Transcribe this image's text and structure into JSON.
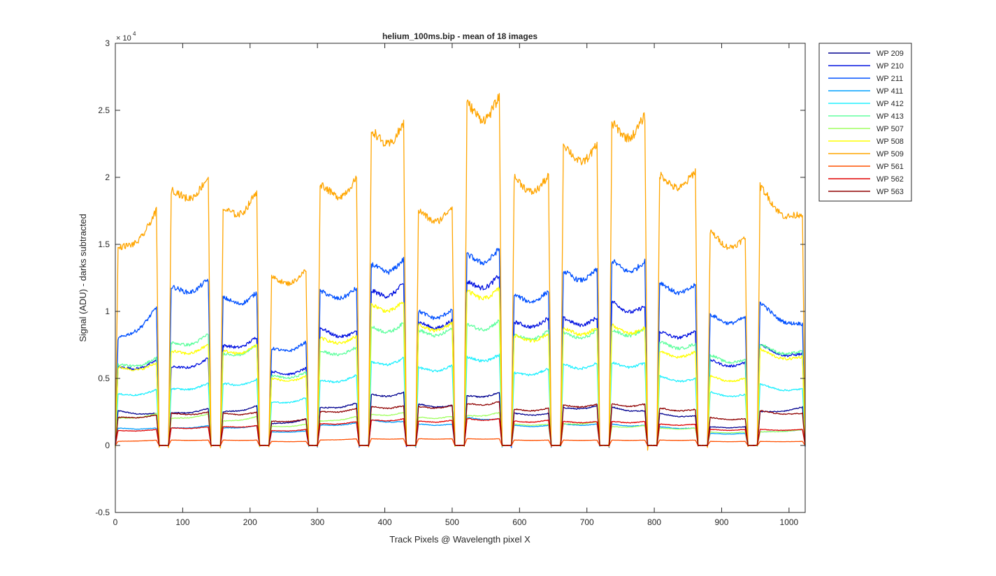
{
  "chart_data": {
    "type": "line",
    "title": "helium_100ms.bip - mean of 18 images",
    "xlabel": "Track Pixels @ Wavelength pixel X",
    "ylabel": "Signal (ADU) - darks subtracted",
    "y_exponent_label": "× 10",
    "y_exponent_power": "4",
    "xlim": [
      0,
      1024
    ],
    "ylim": [
      -0.5,
      3
    ],
    "x_ticks": [
      0,
      100,
      200,
      300,
      400,
      500,
      600,
      700,
      800,
      900,
      1000
    ],
    "x_tick_labels": [
      "0",
      "100",
      "200",
      "300",
      "400",
      "500",
      "600",
      "700",
      "800",
      "900",
      "1000"
    ],
    "y_ticks": [
      -0.5,
      0,
      0.5,
      1,
      1.5,
      2,
      2.5,
      3
    ],
    "y_tick_labels": [
      "-0.5",
      "0",
      "0.5",
      "1",
      "1.5",
      "2",
      "2.5",
      "3"
    ],
    "y_scale_note": "values in units of 10^4 ADU",
    "grid": false,
    "legend_position": "outside-top-right",
    "tracks": [
      {
        "start": 0,
        "end": 65
      },
      {
        "start": 79,
        "end": 142
      },
      {
        "start": 156,
        "end": 214
      },
      {
        "start": 228,
        "end": 287
      },
      {
        "start": 300,
        "end": 362
      },
      {
        "start": 376,
        "end": 432
      },
      {
        "start": 446,
        "end": 504
      },
      {
        "start": 518,
        "end": 574
      },
      {
        "start": 588,
        "end": 647
      },
      {
        "start": 661,
        "end": 719
      },
      {
        "start": 733,
        "end": 790
      },
      {
        "start": 804,
        "end": 865
      },
      {
        "start": 879,
        "end": 939
      },
      {
        "start": 953,
        "end": 1024
      }
    ],
    "series": [
      {
        "name": "WP 209",
        "color": "#00008f",
        "track_levels": [
          [
            0.26,
            0.24
          ],
          [
            0.24,
            0.28
          ],
          [
            0.25,
            0.3
          ],
          [
            0.16,
            0.2
          ],
          [
            0.28,
            0.32
          ],
          [
            0.38,
            0.4
          ],
          [
            0.31,
            0.3
          ],
          [
            0.37,
            0.4
          ],
          [
            0.24,
            0.24
          ],
          [
            0.28,
            0.3
          ],
          [
            0.29,
            0.26
          ],
          [
            0.24,
            0.22
          ],
          [
            0.14,
            0.14
          ],
          [
            0.25,
            0.29
          ]
        ]
      },
      {
        "name": "WP 210",
        "color": "#0010e0",
        "track_levels": [
          [
            0.58,
            0.64
          ],
          [
            0.58,
            0.66
          ],
          [
            0.74,
            0.82
          ],
          [
            0.55,
            0.58
          ],
          [
            0.88,
            0.85
          ],
          [
            1.15,
            1.22
          ],
          [
            0.92,
            0.94
          ],
          [
            1.22,
            1.28
          ],
          [
            0.92,
            0.96
          ],
          [
            0.95,
            0.96
          ],
          [
            1.08,
            1.04
          ],
          [
            0.85,
            0.86
          ],
          [
            0.64,
            0.62
          ],
          [
            0.76,
            0.68
          ]
        ]
      },
      {
        "name": "WP 211",
        "color": "#0050ff",
        "track_levels": [
          [
            0.78,
            1.05
          ],
          [
            1.18,
            1.25
          ],
          [
            1.1,
            1.15
          ],
          [
            0.72,
            0.78
          ],
          [
            1.15,
            1.18
          ],
          [
            1.35,
            1.4
          ],
          [
            1.0,
            1.02
          ],
          [
            1.42,
            1.48
          ],
          [
            1.12,
            1.16
          ],
          [
            1.3,
            1.32
          ],
          [
            1.38,
            1.38
          ],
          [
            1.22,
            1.2
          ],
          [
            0.98,
            0.96
          ],
          [
            1.08,
            0.9
          ]
        ]
      },
      {
        "name": "WP 411",
        "color": "#00a0ff",
        "track_levels": [
          [
            0.13,
            0.13
          ],
          [
            0.13,
            0.15
          ],
          [
            0.13,
            0.15
          ],
          [
            0.1,
            0.11
          ],
          [
            0.15,
            0.17
          ],
          [
            0.19,
            0.18
          ],
          [
            0.16,
            0.16
          ],
          [
            0.21,
            0.2
          ],
          [
            0.15,
            0.15
          ],
          [
            0.16,
            0.16
          ],
          [
            0.16,
            0.15
          ],
          [
            0.14,
            0.13
          ],
          [
            0.09,
            0.09
          ],
          [
            0.1,
            0.12
          ]
        ]
      },
      {
        "name": "WP 412",
        "color": "#20f0ff",
        "track_levels": [
          [
            0.38,
            0.42
          ],
          [
            0.42,
            0.47
          ],
          [
            0.46,
            0.5
          ],
          [
            0.32,
            0.36
          ],
          [
            0.48,
            0.53
          ],
          [
            0.62,
            0.66
          ],
          [
            0.58,
            0.6
          ],
          [
            0.66,
            0.68
          ],
          [
            0.54,
            0.58
          ],
          [
            0.6,
            0.62
          ],
          [
            0.62,
            0.62
          ],
          [
            0.52,
            0.5
          ],
          [
            0.4,
            0.38
          ],
          [
            0.46,
            0.42
          ]
        ]
      },
      {
        "name": "WP 413",
        "color": "#60ff9f",
        "track_levels": [
          [
            0.6,
            0.66
          ],
          [
            0.76,
            0.84
          ],
          [
            0.68,
            0.76
          ],
          [
            0.52,
            0.55
          ],
          [
            0.7,
            0.74
          ],
          [
            0.88,
            0.92
          ],
          [
            0.86,
            0.88
          ],
          [
            0.9,
            0.94
          ],
          [
            0.82,
            0.86
          ],
          [
            0.84,
            0.86
          ],
          [
            0.86,
            0.88
          ],
          [
            0.78,
            0.76
          ],
          [
            0.68,
            0.64
          ],
          [
            0.76,
            0.7
          ]
        ]
      },
      {
        "name": "WP 507",
        "color": "#a0ff60",
        "track_levels": [
          [
            0.2,
            0.24
          ],
          [
            0.2,
            0.24
          ],
          [
            0.18,
            0.22
          ],
          [
            0.14,
            0.16
          ],
          [
            0.18,
            0.22
          ],
          [
            0.23,
            0.25
          ],
          [
            0.21,
            0.22
          ],
          [
            0.22,
            0.25
          ],
          [
            0.16,
            0.16
          ],
          [
            0.16,
            0.18
          ],
          [
            0.14,
            0.15
          ],
          [
            0.13,
            0.13
          ],
          [
            0.1,
            0.1
          ],
          [
            0.1,
            0.12
          ]
        ]
      },
      {
        "name": "WP 508",
        "color": "#ffff00",
        "track_levels": [
          [
            0.58,
            0.62
          ],
          [
            0.7,
            0.76
          ],
          [
            0.7,
            0.76
          ],
          [
            0.5,
            0.52
          ],
          [
            0.8,
            0.82
          ],
          [
            1.05,
            1.08
          ],
          [
            0.9,
            0.92
          ],
          [
            1.15,
            1.18
          ],
          [
            0.82,
            0.84
          ],
          [
            0.88,
            0.88
          ],
          [
            0.9,
            0.88
          ],
          [
            0.7,
            0.7
          ],
          [
            0.52,
            0.5
          ],
          [
            0.72,
            0.66
          ]
        ]
      },
      {
        "name": "WP 509",
        "color": "#ffa500",
        "track_levels": [
          [
            1.45,
            1.78
          ],
          [
            1.9,
            2.02
          ],
          [
            1.75,
            1.92
          ],
          [
            1.25,
            1.32
          ],
          [
            1.95,
            2.0
          ],
          [
            2.35,
            2.42
          ],
          [
            1.75,
            1.8
          ],
          [
            2.55,
            2.62
          ],
          [
            2.0,
            2.02
          ],
          [
            2.25,
            2.25
          ],
          [
            2.4,
            2.48
          ],
          [
            2.02,
            2.06
          ],
          [
            1.6,
            1.55
          ],
          [
            1.95,
            1.72
          ]
        ]
      },
      {
        "name": "WP 561",
        "color": "#ff5000",
        "track_levels": [
          [
            0.03,
            0.04
          ],
          [
            0.04,
            0.04
          ],
          [
            0.04,
            0.04
          ],
          [
            0.03,
            0.03
          ],
          [
            0.04,
            0.05
          ],
          [
            0.05,
            0.05
          ],
          [
            0.05,
            0.05
          ],
          [
            0.05,
            0.05
          ],
          [
            0.04,
            0.04
          ],
          [
            0.04,
            0.04
          ],
          [
            0.04,
            0.04
          ],
          [
            0.04,
            0.04
          ],
          [
            0.03,
            0.03
          ],
          [
            0.03,
            0.03
          ]
        ]
      },
      {
        "name": "WP 562",
        "color": "#e00000",
        "track_levels": [
          [
            0.11,
            0.12
          ],
          [
            0.13,
            0.14
          ],
          [
            0.14,
            0.15
          ],
          [
            0.11,
            0.12
          ],
          [
            0.16,
            0.18
          ],
          [
            0.19,
            0.2
          ],
          [
            0.18,
            0.19
          ],
          [
            0.2,
            0.2
          ],
          [
            0.18,
            0.19
          ],
          [
            0.18,
            0.18
          ],
          [
            0.18,
            0.18
          ],
          [
            0.16,
            0.16
          ],
          [
            0.12,
            0.12
          ],
          [
            0.12,
            0.12
          ]
        ]
      },
      {
        "name": "WP 563",
        "color": "#8f0000",
        "track_levels": [
          [
            0.21,
            0.23
          ],
          [
            0.24,
            0.25
          ],
          [
            0.24,
            0.25
          ],
          [
            0.18,
            0.2
          ],
          [
            0.25,
            0.28
          ],
          [
            0.29,
            0.3
          ],
          [
            0.29,
            0.3
          ],
          [
            0.31,
            0.33
          ],
          [
            0.27,
            0.28
          ],
          [
            0.3,
            0.31
          ],
          [
            0.31,
            0.31
          ],
          [
            0.28,
            0.27
          ],
          [
            0.21,
            0.2
          ],
          [
            0.26,
            0.24
          ]
        ]
      }
    ]
  }
}
